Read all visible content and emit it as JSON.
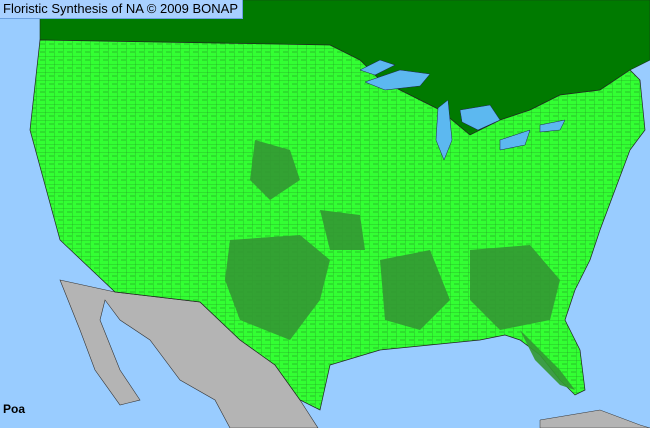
{
  "title": "Floristic Synthesis of NA © 2009 BONAP",
  "taxon": "Poa",
  "colors": {
    "ocean": "#99ccff",
    "present_county": "#33ff33",
    "dense_county": "#339933",
    "canada_present": "#007a00",
    "mexico_absent": "#b4b4b4",
    "lakes": "#5cb8f0",
    "borders": "#222222"
  }
}
